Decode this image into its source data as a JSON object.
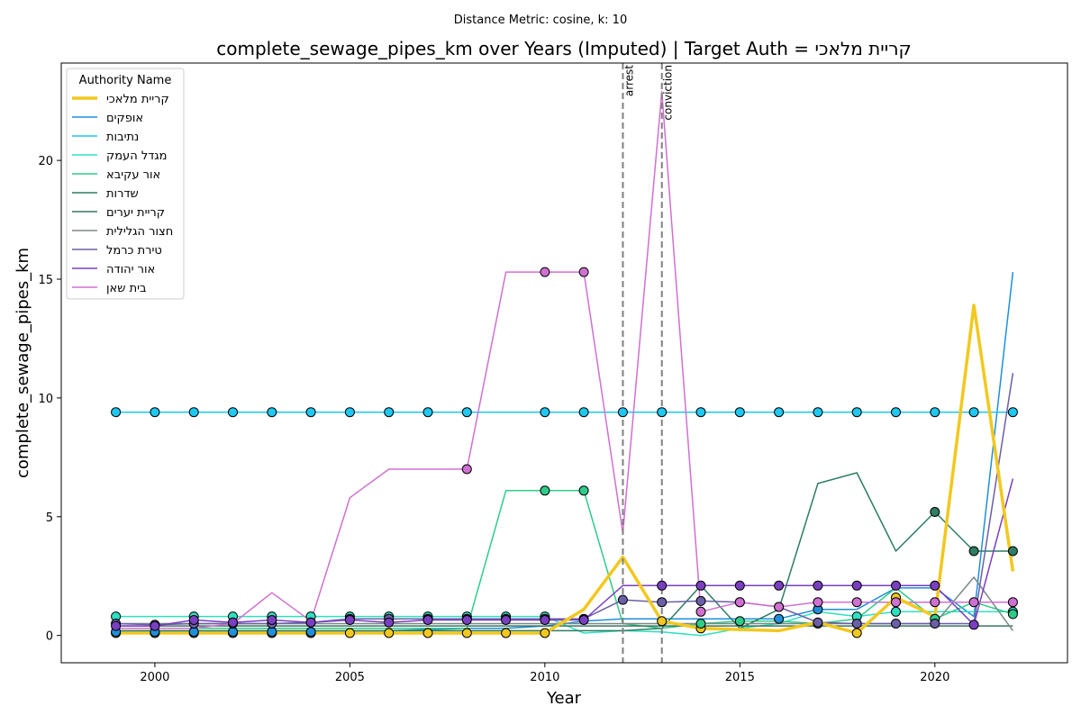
{
  "chart_data": {
    "type": "line",
    "suptitle": "Distance Metric: cosine, k: 10",
    "title": "complete_sewage_pipes_km over Years (Imputed) | Target Auth = קריית מלאכי",
    "xlabel": "Year",
    "ylabel": "complete_sewage_pipes_km",
    "xlim": [
      1997.6,
      2023.4
    ],
    "ylim": [
      -1.15,
      24.1
    ],
    "xticks": [
      2000,
      2005,
      2010,
      2015,
      2020
    ],
    "yticks": [
      0,
      5,
      10,
      15,
      20
    ],
    "legend_title": "Authority Name",
    "legend_position": "upper-left",
    "grid": false,
    "event_lines": [
      {
        "x": 2012,
        "label": "arrest",
        "color": "#808080"
      },
      {
        "x": 2013,
        "label": "conviction",
        "color": "#808080"
      }
    ],
    "x": [
      1999,
      2000,
      2001,
      2002,
      2003,
      2004,
      2005,
      2006,
      2007,
      2008,
      2009,
      2010,
      2011,
      2012,
      2013,
      2014,
      2015,
      2016,
      2017,
      2018,
      2019,
      2020,
      2021,
      2022
    ],
    "series": [
      {
        "name": "קריית מלאכי",
        "color": "#f2c81e",
        "width": 3.5,
        "values": [
          0.1,
          0.1,
          0.1,
          0.1,
          0.1,
          0.1,
          0.1,
          0.1,
          0.1,
          0.1,
          0.1,
          0.1,
          1.1,
          3.3,
          0.6,
          0.3,
          0.25,
          0.2,
          0.55,
          0.1,
          1.6,
          0.8,
          13.9,
          2.7
        ],
        "markers": [
          0,
          1,
          2,
          3,
          4,
          5,
          6,
          7,
          8,
          9,
          10,
          11,
          14,
          15,
          19,
          20
        ]
      },
      {
        "name": "אופקים",
        "color": "#1f8fd9",
        "width": 1.5,
        "values": [
          0.15,
          0.15,
          0.15,
          0.15,
          0.15,
          0.15,
          0.15,
          0.2,
          0.25,
          0.3,
          0.3,
          0.4,
          0.6,
          0.7,
          0.7,
          0.7,
          0.7,
          0.7,
          1.1,
          1.1,
          2.0,
          2.0,
          0.8,
          15.3
        ],
        "markers": [
          0,
          1,
          2,
          3,
          4,
          5,
          17,
          18
        ]
      },
      {
        "name": "נתיבות",
        "color": "#1fc8f0",
        "width": 1.5,
        "values": [
          9.4,
          9.4,
          9.4,
          9.4,
          9.4,
          9.4,
          9.4,
          9.4,
          9.4,
          9.4,
          9.4,
          9.4,
          9.4,
          9.4,
          9.4,
          9.4,
          9.4,
          9.4,
          9.4,
          9.4,
          9.4,
          9.4,
          9.4,
          9.4
        ],
        "markers": [
          0,
          1,
          2,
          3,
          4,
          5,
          6,
          7,
          8,
          9,
          11,
          12,
          13,
          14,
          15,
          16,
          17,
          18,
          19,
          20,
          21,
          22,
          23
        ]
      },
      {
        "name": "מגדל העמק",
        "color": "#2ee0c0",
        "width": 1.5,
        "values": [
          0.8,
          0.8,
          0.8,
          0.8,
          0.8,
          0.8,
          0.8,
          0.8,
          0.8,
          0.8,
          0.8,
          0.8,
          0.1,
          0.2,
          0.15,
          0.0,
          0.3,
          0.5,
          1.0,
          0.8,
          1.0,
          1.0,
          1.0,
          1.0
        ],
        "markers": [
          0,
          2,
          3,
          4,
          5,
          6,
          7,
          8,
          9,
          10,
          11,
          19,
          20,
          23
        ]
      },
      {
        "name": "אור עקיבא",
        "color": "#2ecc88",
        "width": 1.5,
        "values": [
          0.3,
          0.3,
          0.3,
          0.3,
          0.3,
          0.3,
          0.3,
          0.3,
          0.3,
          0.3,
          6.1,
          6.1,
          6.1,
          0.5,
          0.3,
          0.5,
          0.6,
          0.6,
          0.5,
          0.7,
          2.0,
          0.7,
          1.4,
          0.9
        ],
        "markers": [
          11,
          12,
          15,
          16,
          18,
          21,
          23
        ]
      },
      {
        "name": "שדרות",
        "color": "#2e7d64",
        "width": 1.5,
        "values": [
          0.2,
          0.2,
          0.2,
          0.2,
          0.2,
          0.2,
          0.2,
          0.2,
          0.2,
          0.2,
          0.2,
          0.2,
          0.2,
          0.2,
          0.3,
          2.1,
          0.3,
          1.1,
          6.4,
          6.85,
          3.55,
          5.2,
          3.55,
          3.55
        ],
        "markers": [
          21,
          22,
          23
        ]
      },
      {
        "name": "קריית יערים",
        "color": "#3b7560",
        "width": 1.5,
        "values": [
          0.4,
          0.4,
          0.4,
          0.4,
          0.4,
          0.4,
          0.4,
          0.4,
          0.4,
          0.4,
          0.4,
          0.4,
          0.4,
          0.4,
          0.4,
          0.4,
          0.4,
          0.4,
          0.4,
          0.4,
          0.4,
          0.4,
          0.4,
          0.4
        ],
        "markers": []
      },
      {
        "name": "חצור הגלילית",
        "color": "#7a8a88",
        "width": 1.5,
        "values": [
          0.5,
          0.5,
          0.5,
          0.5,
          0.5,
          0.5,
          0.5,
          0.5,
          0.5,
          0.5,
          0.5,
          0.5,
          0.5,
          0.5,
          0.5,
          0.5,
          0.5,
          0.5,
          0.5,
          0.5,
          0.5,
          0.5,
          2.45,
          0.2
        ],
        "markers": []
      },
      {
        "name": "טירת כרמל",
        "color": "#6b5fa8",
        "width": 1.5,
        "values": [
          0.5,
          0.45,
          0.5,
          0.5,
          0.5,
          0.55,
          0.7,
          0.7,
          0.7,
          0.7,
          0.7,
          0.7,
          0.7,
          1.5,
          1.4,
          1.45,
          1.4,
          1.2,
          0.55,
          0.5,
          0.5,
          0.5,
          0.5,
          11.05
        ],
        "markers": [
          0,
          1,
          2,
          3,
          4,
          5,
          6,
          7,
          8,
          9,
          10,
          11,
          12,
          13,
          14,
          15,
          16,
          17,
          18,
          19,
          20,
          21
        ]
      },
      {
        "name": "אור יהודה",
        "color": "#7a3fc0",
        "width": 1.5,
        "values": [
          0.4,
          0.4,
          0.65,
          0.55,
          0.65,
          0.55,
          0.65,
          0.55,
          0.65,
          0.65,
          0.65,
          0.65,
          0.65,
          2.1,
          2.1,
          2.1,
          2.1,
          2.1,
          2.1,
          2.1,
          2.1,
          2.1,
          0.45,
          6.6
        ],
        "markers": [
          0,
          1,
          2,
          3,
          4,
          5,
          6,
          7,
          8,
          9,
          10,
          11,
          12,
          14,
          15,
          16,
          17,
          18,
          19,
          20,
          21,
          22
        ]
      },
      {
        "name": "בית שאן",
        "color": "#d070d0",
        "width": 1.5,
        "values": [
          0.3,
          0.3,
          0.3,
          0.5,
          1.8,
          0.6,
          5.8,
          7.0,
          7.0,
          7.0,
          15.3,
          15.3,
          15.3,
          4.3,
          22.9,
          1.0,
          1.4,
          1.2,
          1.4,
          1.4,
          1.4,
          1.4,
          1.4,
          1.4
        ],
        "markers": [
          9,
          11,
          12,
          15,
          16,
          17,
          18,
          19,
          20,
          21,
          22,
          23
        ]
      }
    ]
  }
}
